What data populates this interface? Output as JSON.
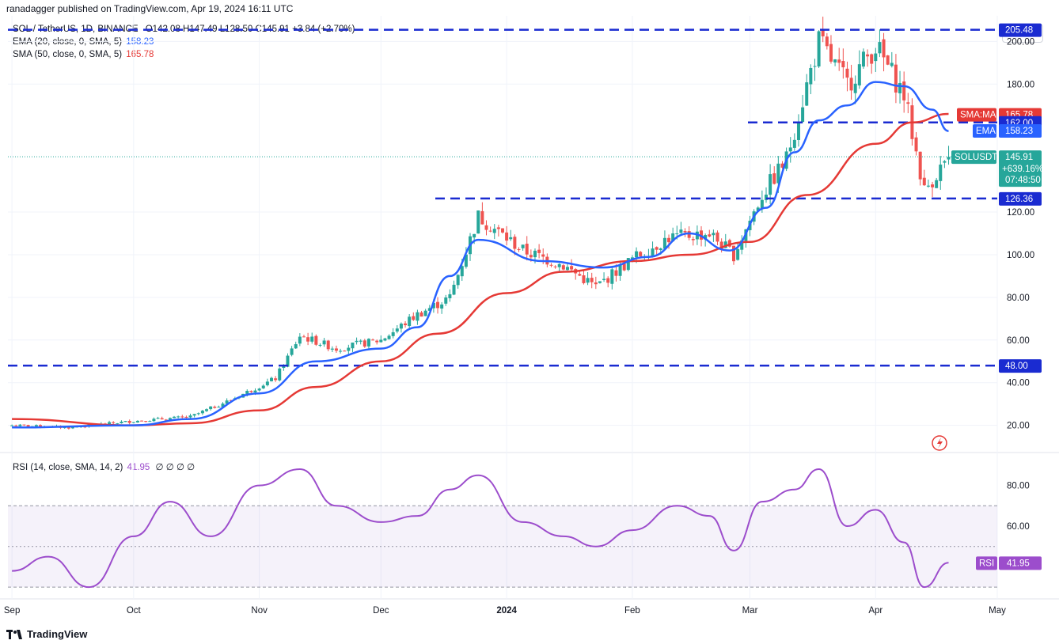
{
  "publisher": "ranadagger published on TradingView.com, Apr 19, 2024 16:11 UTC",
  "legend": {
    "symbol": "SOL / TetherUS, 1D, BINANCE",
    "ohlc": "O142.08 H147.49 L128.50 C145.91 +3.84 (+2.70%)",
    "ema_label": "EMA (20, close, 0, SMA, 5)",
    "ema_value": "158.23",
    "sma_label": "SMA (50, close, 0, SMA, 5)",
    "sma_value": "165.78",
    "rsi_label": "RSI (14, close, SMA, 14, 2)",
    "rsi_value": "41.95",
    "rsi_extra": "∅ ∅ ∅ ∅"
  },
  "unit": "USDT",
  "footer": "TradingView",
  "colors": {
    "up": "#26a69a",
    "down": "#ef5350",
    "ema": "#2962ff",
    "sma": "#e53935",
    "rsi": "#9c4dcc",
    "level": "#1a2bd1",
    "sol_tag": "#26a69a"
  },
  "chart_data": [
    {
      "type": "line",
      "title": "",
      "x_ticks": [
        "Sep",
        "Oct",
        "Nov",
        "Dec",
        "2024",
        "Feb",
        "Mar",
        "Apr",
        "May"
      ],
      "y_ticks": [
        "20.00",
        "40.00",
        "60.00",
        "80.00",
        "100.00",
        "120.00",
        "180.00",
        "200.00"
      ],
      "ylim": [
        8,
        212
      ],
      "price_tags": [
        {
          "name": "level",
          "value": 205.48,
          "text": "205.48"
        },
        {
          "name": "SMA:MA",
          "value": 165.78,
          "text": "165.78"
        },
        {
          "name": "level",
          "value": 162.0,
          "text": "162.00"
        },
        {
          "name": "EMA",
          "value": 158.23,
          "text": "158.23"
        },
        {
          "name": "SOLUSDT",
          "value": 145.91,
          "text": "145.91",
          "change": "+639.16%",
          "countdown": "07:48:50"
        },
        {
          "name": "level",
          "value": 126.36,
          "text": "126.36"
        },
        {
          "name": "level",
          "value": 48.0,
          "text": "48.00"
        }
      ],
      "horizontal_levels": [
        205.48,
        162.0,
        126.36,
        48.0
      ],
      "last_close": 145.91,
      "series": [
        {
          "name": "EMA",
          "x": [
            "2023-09-01",
            "2023-10-01",
            "2023-10-15",
            "2023-11-01",
            "2023-11-15",
            "2023-12-01",
            "2023-12-10",
            "2023-12-18",
            "2023-12-25",
            "2024-01-10",
            "2024-01-25",
            "2024-02-05",
            "2024-02-15",
            "2024-02-25",
            "2024-03-05",
            "2024-03-12",
            "2024-03-18",
            "2024-03-25",
            "2024-04-01",
            "2024-04-08",
            "2024-04-15",
            "2024-04-19"
          ],
          "values": [
            19,
            20,
            23,
            35,
            50,
            56,
            66,
            90,
            107,
            97,
            94,
            99,
            110,
            102,
            122,
            148,
            163,
            170,
            181,
            179,
            168,
            158
          ]
        },
        {
          "name": "SMA:MA",
          "x": [
            "2023-09-01",
            "2023-10-01",
            "2023-10-15",
            "2023-11-01",
            "2023-11-15",
            "2023-12-01",
            "2023-12-15",
            "2024-01-01",
            "2024-01-15",
            "2024-02-01",
            "2024-02-15",
            "2024-03-01",
            "2024-03-15",
            "2024-04-01",
            "2024-04-10",
            "2024-04-19"
          ],
          "values": [
            23,
            20,
            21,
            27,
            38,
            50,
            63,
            82,
            92,
            97,
            100,
            106,
            128,
            152,
            162,
            166
          ]
        },
        {
          "name": "SOLUSDT",
          "x": [
            "2023-09-01",
            "2023-09-15",
            "2023-10-01",
            "2023-10-15",
            "2023-10-25",
            "2023-11-05",
            "2023-11-11",
            "2023-11-20",
            "2023-12-01",
            "2023-12-10",
            "2023-12-18",
            "2023-12-25",
            "2024-01-05",
            "2024-01-15",
            "2024-01-23",
            "2024-02-01",
            "2024-02-10",
            "2024-02-20",
            "2024-02-26",
            "2024-03-04",
            "2024-03-10",
            "2024-03-18",
            "2024-03-25",
            "2024-04-01",
            "2024-04-08",
            "2024-04-13",
            "2024-04-19"
          ],
          "values": [
            20,
            19,
            22,
            24,
            32,
            42,
            62,
            56,
            60,
            72,
            80,
            118,
            102,
            95,
            85,
            98,
            108,
            110,
            100,
            128,
            145,
            200,
            180,
            198,
            175,
            130,
            146
          ]
        }
      ]
    },
    {
      "type": "line",
      "title": "",
      "y_ticks": [
        "80.00",
        "60.00"
      ],
      "ylim": [
        25,
        95
      ],
      "bands": [
        70,
        50,
        30
      ],
      "tag": {
        "name": "RSI",
        "text": "41.95"
      },
      "series": [
        {
          "name": "RSI",
          "x": [
            "2023-09-01",
            "2023-09-10",
            "2023-09-20",
            "2023-10-01",
            "2023-10-10",
            "2023-10-20",
            "2023-11-01",
            "2023-11-11",
            "2023-11-20",
            "2023-12-01",
            "2023-12-10",
            "2023-12-18",
            "2023-12-25",
            "2024-01-05",
            "2024-01-15",
            "2024-01-23",
            "2024-02-01",
            "2024-02-12",
            "2024-02-20",
            "2024-02-26",
            "2024-03-04",
            "2024-03-12",
            "2024-03-18",
            "2024-03-25",
            "2024-04-01",
            "2024-04-08",
            "2024-04-13",
            "2024-04-19"
          ],
          "values": [
            38,
            45,
            30,
            55,
            72,
            55,
            80,
            88,
            70,
            62,
            65,
            78,
            85,
            62,
            55,
            50,
            58,
            70,
            65,
            48,
            72,
            78,
            88,
            60,
            68,
            52,
            30,
            42
          ]
        }
      ]
    }
  ]
}
